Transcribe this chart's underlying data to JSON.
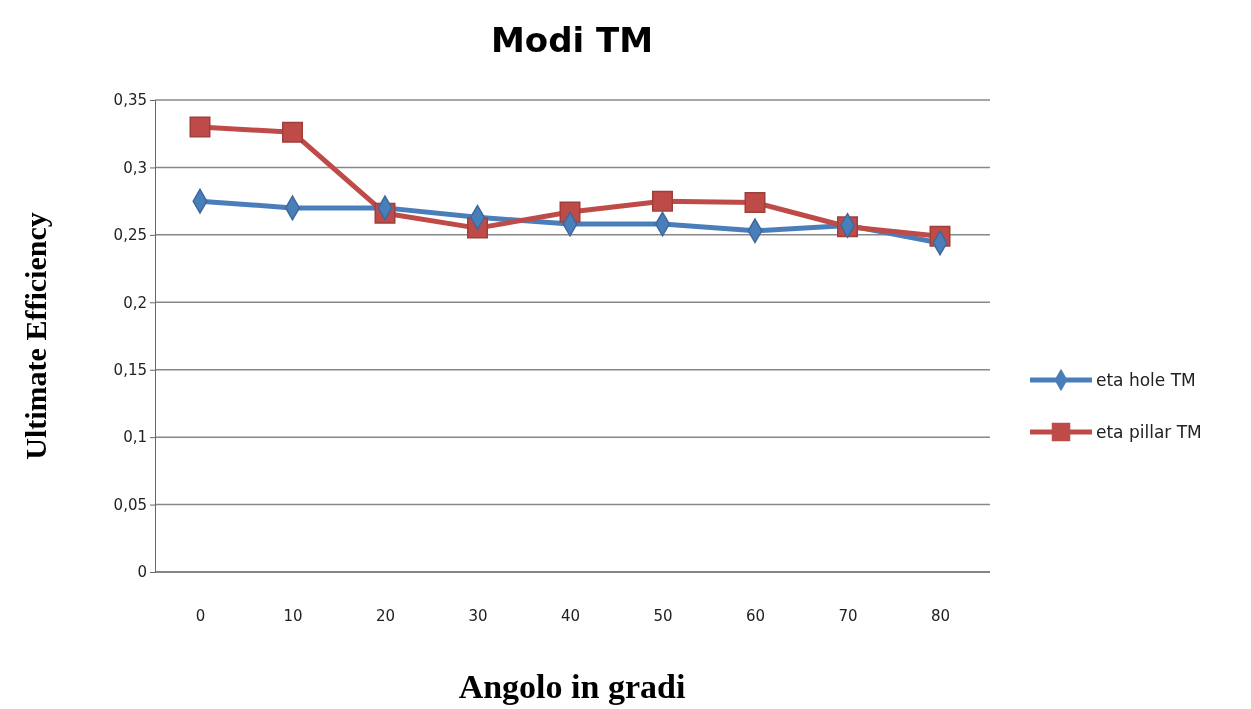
{
  "chart_data": {
    "type": "line",
    "title": "Modi TM",
    "xlabel": "Angolo in gradi",
    "ylabel": "Ultimate Efficiency",
    "categories": [
      "0",
      "10",
      "20",
      "30",
      "40",
      "50",
      "60",
      "70",
      "80"
    ],
    "series": [
      {
        "name": "eta hole TM",
        "color": "#4a7ebb",
        "marker": "diamond",
        "values": [
          0.275,
          0.27,
          0.27,
          0.263,
          0.258,
          0.258,
          0.253,
          0.257,
          0.244
        ]
      },
      {
        "name": "eta pillar TM",
        "color": "#be4b48",
        "marker": "square",
        "values": [
          0.33,
          0.326,
          0.266,
          0.255,
          0.267,
          0.275,
          0.274,
          0.256,
          0.249
        ]
      }
    ],
    "ylim": [
      0,
      0.35
    ],
    "yticks": [
      {
        "value": 0,
        "label": "0"
      },
      {
        "value": 0.05,
        "label": "0,05"
      },
      {
        "value": 0.1,
        "label": "0,1"
      },
      {
        "value": 0.15,
        "label": "0,15"
      },
      {
        "value": 0.2,
        "label": "0,2"
      },
      {
        "value": 0.25,
        "label": "0,25"
      },
      {
        "value": 0.3,
        "label": "0,3"
      },
      {
        "value": 0.35,
        "label": "0,35"
      }
    ],
    "grid": "y",
    "legend": "right"
  }
}
